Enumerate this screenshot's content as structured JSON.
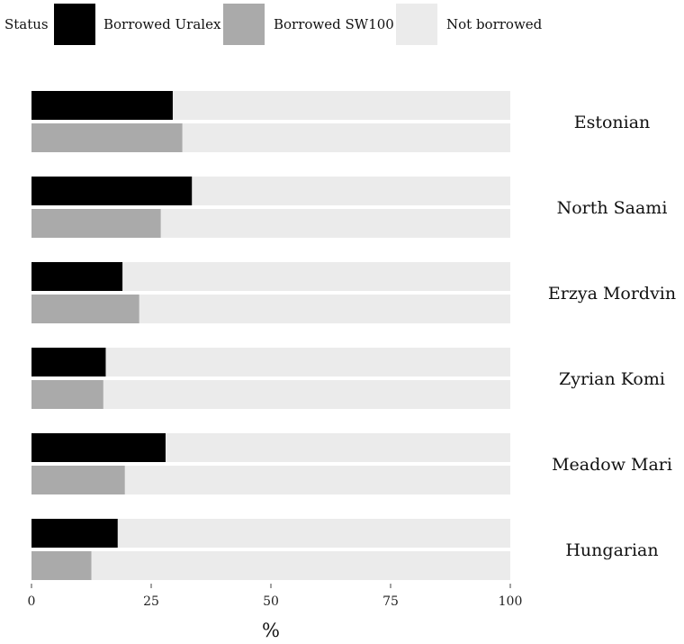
{
  "legend": {
    "title": "Status",
    "items": [
      {
        "label": "Borrowed Uralex",
        "color": "#000000"
      },
      {
        "label": "Borrowed SW100",
        "color": "#aaaaaa"
      },
      {
        "label": "Not borrowed",
        "color": "#ebebeb"
      }
    ]
  },
  "chart_data": {
    "type": "bar",
    "orientation": "horizontal",
    "stacked_to_100": true,
    "categories": [
      "Estonian",
      "North Saami",
      "Erzya Mordvin",
      "Zyrian Komi",
      "Meadow Mari",
      "Hungarian"
    ],
    "series": [
      {
        "name": "Borrowed Uralex",
        "color": "#000000",
        "values": [
          29.5,
          33.5,
          19,
          15.5,
          28,
          18
        ]
      },
      {
        "name": "Borrowed SW100",
        "color": "#aaaaaa",
        "values": [
          31.5,
          27,
          22.5,
          15,
          19.5,
          12.5
        ]
      }
    ],
    "remainder": {
      "name": "Not borrowed",
      "color": "#ebebeb"
    },
    "xlabel": "%",
    "ylabel": "",
    "xlim": [
      0,
      100
    ],
    "xticks": [
      "0",
      "25",
      "50",
      "75",
      "100"
    ],
    "legend_position": "top-left",
    "grid": false
  }
}
